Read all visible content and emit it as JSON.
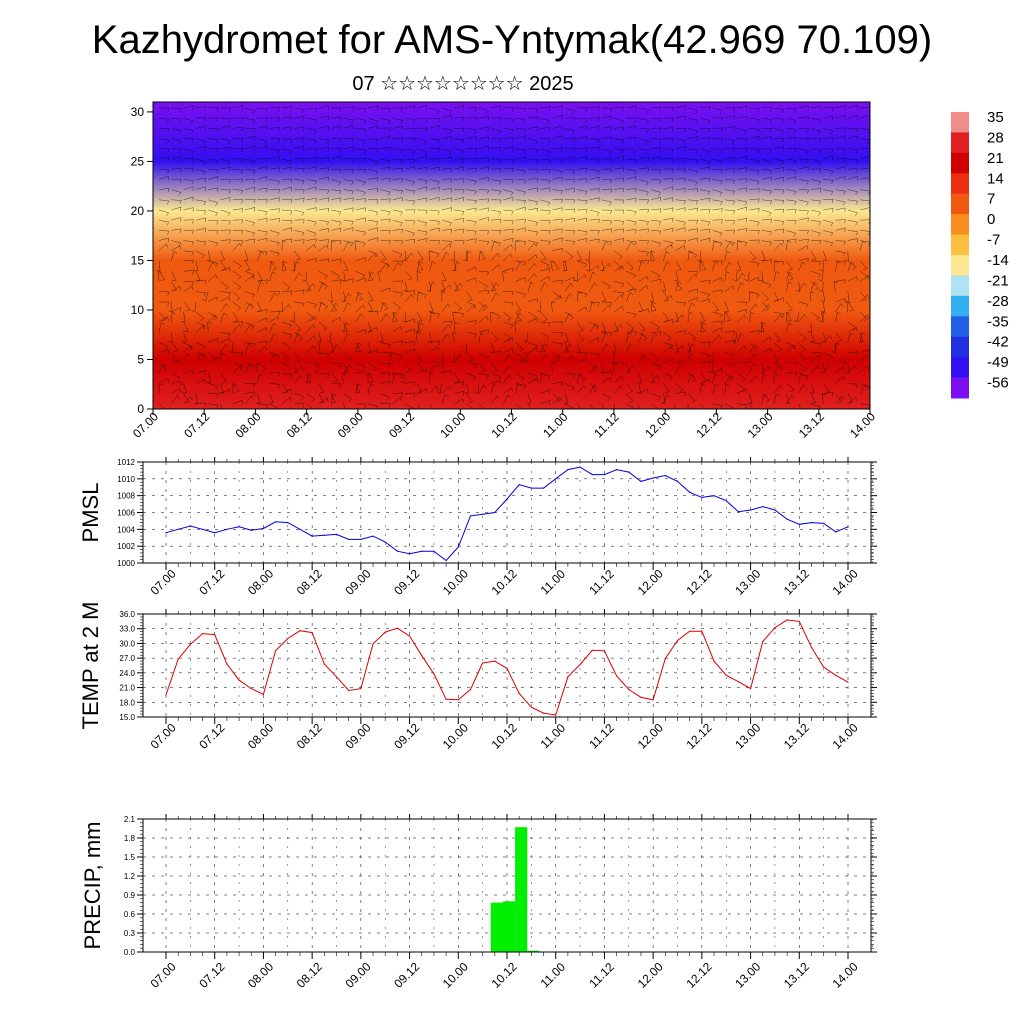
{
  "title": "Kazhydromet for AMS-Yntymak(42.969 70.109)",
  "subtitle": "07 ☆☆☆☆☆☆☆☆ 2025",
  "time_ticks": [
    "07.00",
    "07.12",
    "08.00",
    "08.12",
    "09.00",
    "09.12",
    "10.00",
    "10.12",
    "11.00",
    "11.12",
    "12.00",
    "12.12",
    "13.00",
    "13.12",
    "14.00"
  ],
  "colorbar": {
    "labels": [
      "35",
      "28",
      "21",
      "14",
      "7",
      "0",
      "-7",
      "-14",
      "-21",
      "-28",
      "-35",
      "-42",
      "-49",
      "-56"
    ],
    "colors": [
      "#f08c8c",
      "#e02020",
      "#d00000",
      "#e83010",
      "#f05a10",
      "#f88c20",
      "#fcc040",
      "#fce890",
      "#aee2f4",
      "#30b0f0",
      "#2060e8",
      "#2030e0",
      "#3010f0",
      "#7a10f0"
    ]
  },
  "chart_data": [
    {
      "type": "heatmap",
      "title": "Kazhydromet for AMS-Yntymak(42.969 70.109)",
      "xlabel": "",
      "ylabel": "",
      "x_ticks": [
        "07.00",
        "07.12",
        "08.00",
        "08.12",
        "09.00",
        "09.12",
        "10.00",
        "10.12",
        "11.00",
        "11.12",
        "12.00",
        "12.12",
        "13.00",
        "13.12",
        "14.00"
      ],
      "ylim": [
        0,
        31
      ],
      "y_ticks": [
        0,
        5,
        10,
        15,
        20,
        25,
        30
      ],
      "levels": [
        0,
        5,
        10,
        15,
        20,
        25,
        31
      ],
      "temperature_profile": [
        30,
        22,
        10,
        5,
        -12,
        -48,
        -56
      ],
      "overlay": "wind barbs"
    },
    {
      "type": "line",
      "ylabel": "PMSL",
      "ylim": [
        1000,
        1012
      ],
      "y_ticks": [
        1000,
        1002,
        1004,
        1006,
        1008,
        1010,
        1012
      ],
      "x_ticks": [
        "07.00",
        "07.12",
        "08.00",
        "08.12",
        "09.00",
        "09.12",
        "10.00",
        "10.12",
        "11.00",
        "11.12",
        "12.00",
        "12.12",
        "13.00",
        "13.12",
        "14.00"
      ],
      "grid": true,
      "color": "#0000dd",
      "x": [
        0,
        3,
        6,
        9,
        12,
        15,
        18,
        21,
        24,
        27,
        30,
        33,
        36,
        39,
        42,
        45,
        48,
        51,
        54,
        57,
        60,
        63,
        66,
        69,
        72,
        75,
        78,
        81,
        84,
        87,
        90,
        93,
        96,
        99,
        102,
        105,
        108,
        111,
        114,
        117,
        120,
        123,
        126,
        129,
        132,
        135,
        138,
        141,
        144,
        147,
        150,
        153,
        156,
        159,
        162,
        165,
        168
      ],
      "values": [
        1003.6,
        1004.0,
        1004.4,
        1004.0,
        1003.6,
        1004.0,
        1004.3,
        1003.9,
        1004.1,
        1004.9,
        1004.8,
        1004.0,
        1003.2,
        1003.3,
        1003.4,
        1002.8,
        1002.8,
        1003.2,
        1002.5,
        1001.4,
        1001.1,
        1001.4,
        1001.4,
        1000.3,
        1001.9,
        1005.6,
        1005.8,
        1006.0,
        1007.6,
        1009.3,
        1008.9,
        1008.9,
        1010.0,
        1011.1,
        1011.4,
        1010.5,
        1010.5,
        1011.1,
        1010.8,
        1009.7,
        1010.1,
        1010.4,
        1009.7,
        1008.4,
        1007.8,
        1008.0,
        1007.4,
        1006.1,
        1006.3,
        1006.7,
        1006.3,
        1005.2,
        1004.6,
        1004.8,
        1004.7,
        1003.7,
        1004.3
      ]
    },
    {
      "type": "line",
      "ylabel": "TEMP at 2 M",
      "ylim": [
        15,
        36
      ],
      "y_ticks": [
        15.0,
        18.0,
        21.0,
        24.0,
        27.0,
        30.0,
        33.0,
        36.0
      ],
      "x_ticks": [
        "07.00",
        "07.12",
        "08.00",
        "08.12",
        "09.00",
        "09.12",
        "10.00",
        "10.12",
        "11.00",
        "11.12",
        "12.00",
        "12.12",
        "13.00",
        "13.12",
        "14.00"
      ],
      "grid": true,
      "color": "#dd0000",
      "x": [
        0,
        3,
        6,
        9,
        12,
        15,
        18,
        21,
        24,
        27,
        30,
        33,
        36,
        39,
        42,
        45,
        48,
        51,
        54,
        57,
        60,
        63,
        66,
        69,
        72,
        75,
        78,
        81,
        84,
        87,
        90,
        93,
        96,
        99,
        102,
        105,
        108,
        111,
        114,
        117,
        120,
        123,
        126,
        129,
        132,
        135,
        138,
        141,
        144,
        147,
        150,
        153,
        156,
        159,
        162,
        165,
        168
      ],
      "values": [
        19.5,
        26.8,
        29.8,
        32.0,
        31.8,
        25.8,
        22.5,
        20.8,
        19.6,
        28.5,
        31.0,
        32.6,
        32.2,
        25.8,
        23.2,
        20.4,
        20.8,
        29.9,
        32.3,
        33.1,
        31.5,
        27.5,
        23.8,
        18.6,
        18.5,
        20.6,
        26.0,
        26.4,
        24.9,
        19.8,
        17.0,
        15.8,
        15.4,
        23.2,
        25.7,
        28.6,
        28.5,
        23.4,
        20.6,
        19.0,
        18.5,
        26.9,
        30.6,
        32.5,
        32.5,
        26.4,
        23.5,
        22.2,
        20.8,
        30.4,
        33.2,
        34.8,
        34.5,
        29.2,
        25.2,
        23.5,
        22.1
      ]
    },
    {
      "type": "bar",
      "ylabel": "PRECIP, mm",
      "ylim": [
        0,
        2.1
      ],
      "y_ticks": [
        0.0,
        0.3,
        0.6,
        0.9,
        1.2,
        1.5,
        1.8,
        2.1
      ],
      "x_ticks": [
        "07.00",
        "07.12",
        "08.00",
        "08.12",
        "09.00",
        "09.12",
        "10.00",
        "10.12",
        "11.00",
        "11.12",
        "12.00",
        "12.12",
        "13.00",
        "13.12",
        "14.00"
      ],
      "grid": true,
      "color": "#00ee00",
      "x": [
        80,
        83,
        86,
        89
      ],
      "values": [
        0.78,
        0.8,
        1.97,
        0.02
      ]
    }
  ]
}
